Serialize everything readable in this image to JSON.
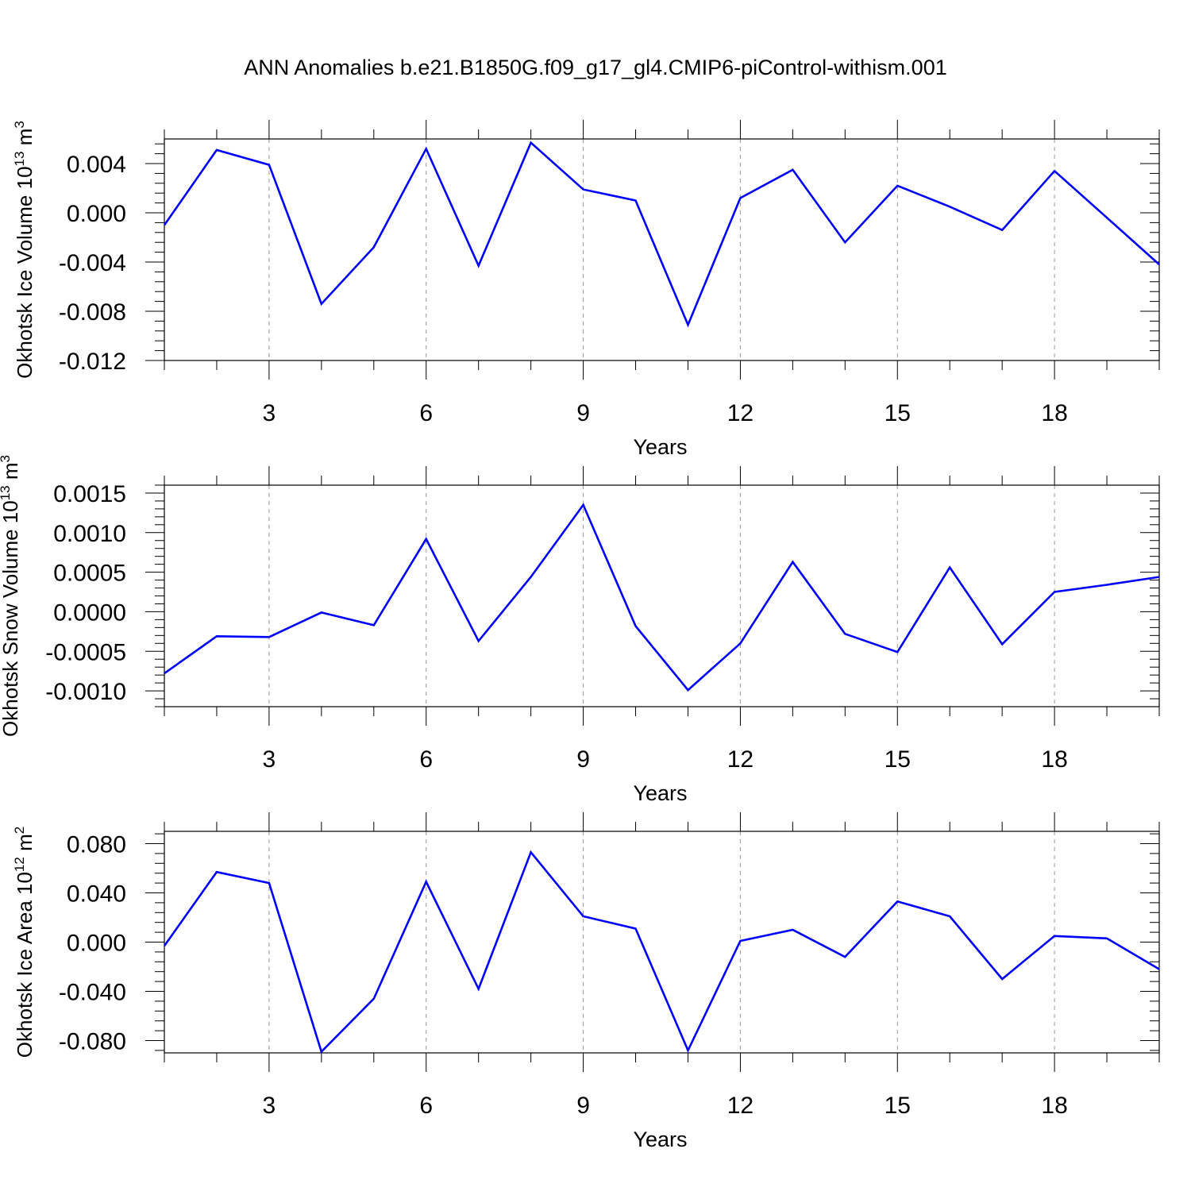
{
  "figure": {
    "title": "ANN Anomalies b.e21.B1850G.f09_g17_gl4.CMIP6-piControl-withism.001"
  },
  "colors": {
    "series": "#0000ff",
    "axis": "#000000",
    "grid": "#999999"
  },
  "chart_data": [
    {
      "type": "line",
      "title": "",
      "xlabel": "Years",
      "ylabel_text": "Okhotsk Ice Volume 10",
      "ylabel_exponent": "13",
      "ylabel_unit": " m",
      "ylabel_unit_exponent": "3",
      "xlim": [
        1,
        20
      ],
      "ylim": [
        -0.012,
        0.006
      ],
      "xticks": [
        3,
        6,
        9,
        12,
        15,
        18
      ],
      "yticks": [
        -0.012,
        -0.008,
        -0.004,
        0.0,
        0.004
      ],
      "ytick_labels": [
        "-0.012",
        "-0.008",
        "-0.004",
        "0.000",
        "0.004"
      ],
      "grid": "vertical dashed at major x ticks",
      "x": [
        1,
        2,
        3,
        4,
        5,
        6,
        7,
        8,
        9,
        10,
        11,
        12,
        13,
        14,
        15,
        16,
        17,
        18,
        19,
        20
      ],
      "series": [
        {
          "values": [
            -0.001,
            0.0051,
            0.0039,
            -0.0074,
            -0.0028,
            0.0052,
            -0.0043,
            0.0057,
            0.0019,
            0.001,
            -0.0091,
            0.0012,
            0.0035,
            -0.0024,
            0.0022,
            0.0005,
            -0.0014,
            0.0034,
            -0.0004,
            -0.0042
          ]
        }
      ]
    },
    {
      "type": "line",
      "title": "",
      "xlabel": "Years",
      "ylabel_text": "Okhotsk Snow Volume 10",
      "ylabel_exponent": "13",
      "ylabel_unit": " m",
      "ylabel_unit_exponent": "3",
      "xlim": [
        1,
        20
      ],
      "ylim": [
        -0.0012,
        0.0016
      ],
      "xticks": [
        3,
        6,
        9,
        12,
        15,
        18
      ],
      "yticks": [
        -0.001,
        -0.0005,
        0.0,
        0.0005,
        0.001,
        0.0015
      ],
      "ytick_labels": [
        "-0.0010",
        "-0.0005",
        "0.0000",
        "0.0005",
        "0.0010",
        "0.0015"
      ],
      "grid": "vertical dashed at major x ticks",
      "x": [
        1,
        2,
        3,
        4,
        5,
        6,
        7,
        8,
        9,
        10,
        11,
        12,
        13,
        14,
        15,
        16,
        17,
        18,
        19,
        20
      ],
      "series": [
        {
          "values": [
            -0.00078,
            -0.00031,
            -0.00032,
            -1e-05,
            -0.00017,
            0.00092,
            -0.00037,
            0.00044,
            0.00135,
            -0.00018,
            -0.00099,
            -0.0004,
            0.00063,
            -0.00028,
            -0.00051,
            0.00056,
            -0.00041,
            0.00025,
            0.00034,
            0.00044
          ]
        }
      ]
    },
    {
      "type": "line",
      "title": "",
      "xlabel": "Years",
      "ylabel_text": "Okhotsk Ice Area 10",
      "ylabel_exponent": "12",
      "ylabel_unit": " m",
      "ylabel_unit_exponent": "2",
      "xlim": [
        1,
        20
      ],
      "ylim": [
        -0.09,
        0.09
      ],
      "xticks": [
        3,
        6,
        9,
        12,
        15,
        18
      ],
      "yticks": [
        -0.08,
        -0.04,
        0.0,
        0.04,
        0.08
      ],
      "ytick_labels": [
        "-0.080",
        "-0.040",
        "0.000",
        "0.040",
        "0.080"
      ],
      "grid": "vertical dashed at major x ticks",
      "x": [
        1,
        2,
        3,
        4,
        5,
        6,
        7,
        8,
        9,
        10,
        11,
        12,
        13,
        14,
        15,
        16,
        17,
        18,
        19,
        20
      ],
      "series": [
        {
          "values": [
            -0.003,
            0.057,
            0.048,
            -0.089,
            -0.046,
            0.049,
            -0.038,
            0.073,
            0.021,
            0.011,
            -0.088,
            0.001,
            0.01,
            -0.012,
            0.033,
            0.021,
            -0.03,
            0.005,
            0.003,
            -0.022
          ]
        }
      ]
    }
  ]
}
